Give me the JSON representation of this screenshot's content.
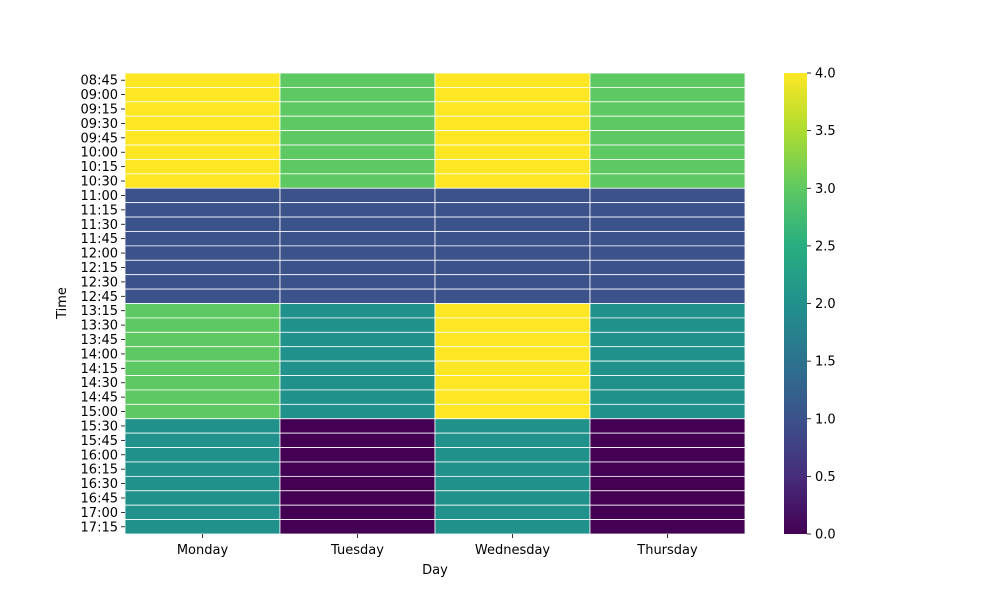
{
  "chart_data": {
    "type": "heatmap",
    "xlabel": "Day",
    "ylabel": "Time",
    "x_categories": [
      "Monday",
      "Tuesday",
      "Wednesday",
      "Thursday"
    ],
    "y_categories": [
      "08:45",
      "09:00",
      "09:15",
      "09:30",
      "09:45",
      "10:00",
      "10:15",
      "10:30",
      "11:00",
      "11:15",
      "11:30",
      "11:45",
      "12:00",
      "12:15",
      "12:30",
      "12:45",
      "13:15",
      "13:30",
      "13:45",
      "14:00",
      "14:15",
      "14:30",
      "14:45",
      "15:00",
      "15:30",
      "15:45",
      "16:00",
      "16:15",
      "16:30",
      "16:45",
      "17:00",
      "17:15"
    ],
    "values": [
      [
        4,
        3,
        4,
        3
      ],
      [
        4,
        3,
        4,
        3
      ],
      [
        4,
        3,
        4,
        3
      ],
      [
        4,
        3,
        4,
        3
      ],
      [
        4,
        3,
        4,
        3
      ],
      [
        4,
        3,
        4,
        3
      ],
      [
        4,
        3,
        4,
        3
      ],
      [
        4,
        3,
        4,
        3
      ],
      [
        1,
        1,
        1,
        1
      ],
      [
        1,
        1,
        1,
        1
      ],
      [
        1,
        1,
        1,
        1
      ],
      [
        1,
        1,
        1,
        1
      ],
      [
        1,
        1,
        1,
        1
      ],
      [
        1,
        1,
        1,
        1
      ],
      [
        1,
        1,
        1,
        1
      ],
      [
        1,
        1,
        1,
        1
      ],
      [
        3,
        2,
        4,
        2
      ],
      [
        3,
        2,
        4,
        2
      ],
      [
        3,
        2,
        4,
        2
      ],
      [
        3,
        2,
        4,
        2
      ],
      [
        3,
        2,
        4,
        2
      ],
      [
        3,
        2,
        4,
        2
      ],
      [
        3,
        2,
        4,
        2
      ],
      [
        3,
        2,
        4,
        2
      ],
      [
        2,
        0,
        2,
        0
      ],
      [
        2,
        0,
        2,
        0
      ],
      [
        2,
        0,
        2,
        0
      ],
      [
        2,
        0,
        2,
        0
      ],
      [
        2,
        0,
        2,
        0
      ],
      [
        2,
        0,
        2,
        0
      ],
      [
        2,
        0,
        2,
        0
      ],
      [
        2,
        0,
        2,
        0
      ]
    ],
    "colormap": "viridis",
    "colorbar": {
      "range": [
        0,
        4
      ],
      "ticks": [
        "0.0",
        "0.5",
        "1.0",
        "1.5",
        "2.0",
        "2.5",
        "3.0",
        "3.5",
        "4.0"
      ]
    },
    "value_colors": {
      "0": "#440154",
      "1": "#3b528b",
      "2": "#21918c",
      "3": "#5ec962",
      "4": "#fde725"
    }
  }
}
